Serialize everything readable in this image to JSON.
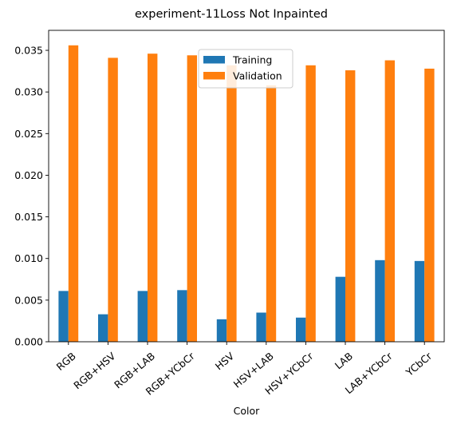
{
  "chart_data": {
    "type": "bar",
    "title": "experiment-11Loss Not Inpainted",
    "xlabel": "Color",
    "ylabel": "",
    "categories": [
      "RGB",
      "RGB+HSV",
      "RGB+LAB",
      "RGB+YCbCr",
      "HSV",
      "HSV+LAB",
      "HSV+YCbCr",
      "LAB",
      "LAB+YCbCr",
      "YCbCr"
    ],
    "series": [
      {
        "name": "Training",
        "color": "#1f77b4",
        "values": [
          0.0061,
          0.0033,
          0.0061,
          0.0062,
          0.0027,
          0.0035,
          0.0029,
          0.0078,
          0.0098,
          0.0097
        ]
      },
      {
        "name": "Validation",
        "color": "#ff7f0e",
        "values": [
          0.0356,
          0.0341,
          0.0346,
          0.0344,
          0.0332,
          0.0308,
          0.0332,
          0.0326,
          0.0338,
          0.0328
        ]
      }
    ],
    "ylim": [
      0,
      0.0374
    ],
    "yticks": [
      "0.000",
      "0.005",
      "0.010",
      "0.015",
      "0.020",
      "0.025",
      "0.030",
      "0.035"
    ],
    "ytick_values": [
      0,
      0.005,
      0.01,
      0.015,
      0.02,
      0.025,
      0.03,
      0.035
    ],
    "legend_position": "top-center",
    "grid": false
  }
}
